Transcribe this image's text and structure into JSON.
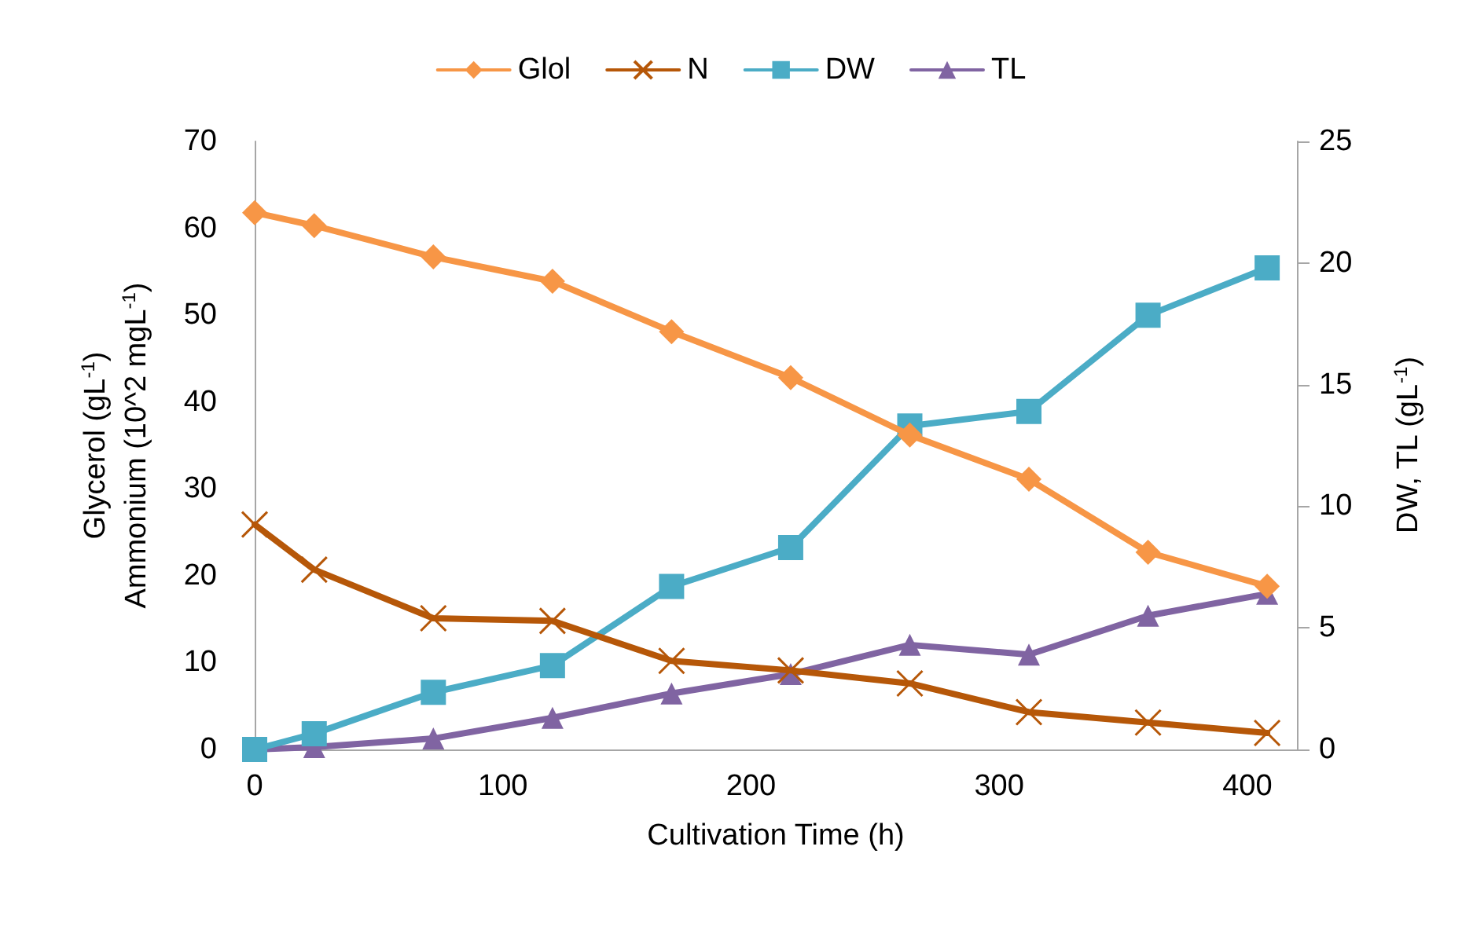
{
  "chart_data": {
    "type": "line",
    "xlabel": "Cultivation Time (h)",
    "ylabel": "Glycerol (gL$^{-1}$)\nAmmonium (10^2 mgL$^{-1}$)",
    "y2label": "DW, TL (gL$^{-1}$)",
    "x": [
      0,
      24,
      72,
      120,
      168,
      216,
      264,
      312,
      360,
      408
    ],
    "series": [
      {
        "name": "Glol",
        "color": "#f79646",
        "marker": "diamond",
        "values": [
          61.8,
          60.3,
          56.7,
          53.9,
          48.1,
          42.8,
          36.2,
          31.1,
          22.7,
          18.8
        ]
      },
      {
        "name": "N",
        "color": "#b65708",
        "marker": "cross",
        "values": [
          25.9,
          20.7,
          15.1,
          14.8,
          10.2,
          9.1,
          7.6,
          4.3,
          3.1,
          1.9
        ]
      },
      {
        "name": "DW",
        "color": "#4bacc6",
        "marker": "square",
        "axis": "y2",
        "values": [
          0,
          0.65,
          2.35,
          3.45,
          6.7,
          8.3,
          13.3,
          13.9,
          17.85,
          19.8
        ]
      },
      {
        "name": "TL",
        "color": "#8064a2",
        "marker": "triangle",
        "axis": "y2",
        "values": [
          0,
          0.1,
          0.45,
          1.3,
          2.3,
          3.1,
          4.3,
          3.9,
          5.5,
          6.4
        ]
      }
    ],
    "xlim": [
      0,
      420
    ],
    "xticks": [
      0,
      100,
      200,
      300,
      400
    ],
    "ylim": [
      0,
      70
    ],
    "yticks": [
      0,
      10,
      20,
      30,
      40,
      50,
      60,
      70
    ],
    "y2lim": [
      0,
      25
    ],
    "y2ticks": [
      0,
      5,
      10,
      15,
      20,
      25
    ],
    "legend": "top",
    "grid": false
  }
}
